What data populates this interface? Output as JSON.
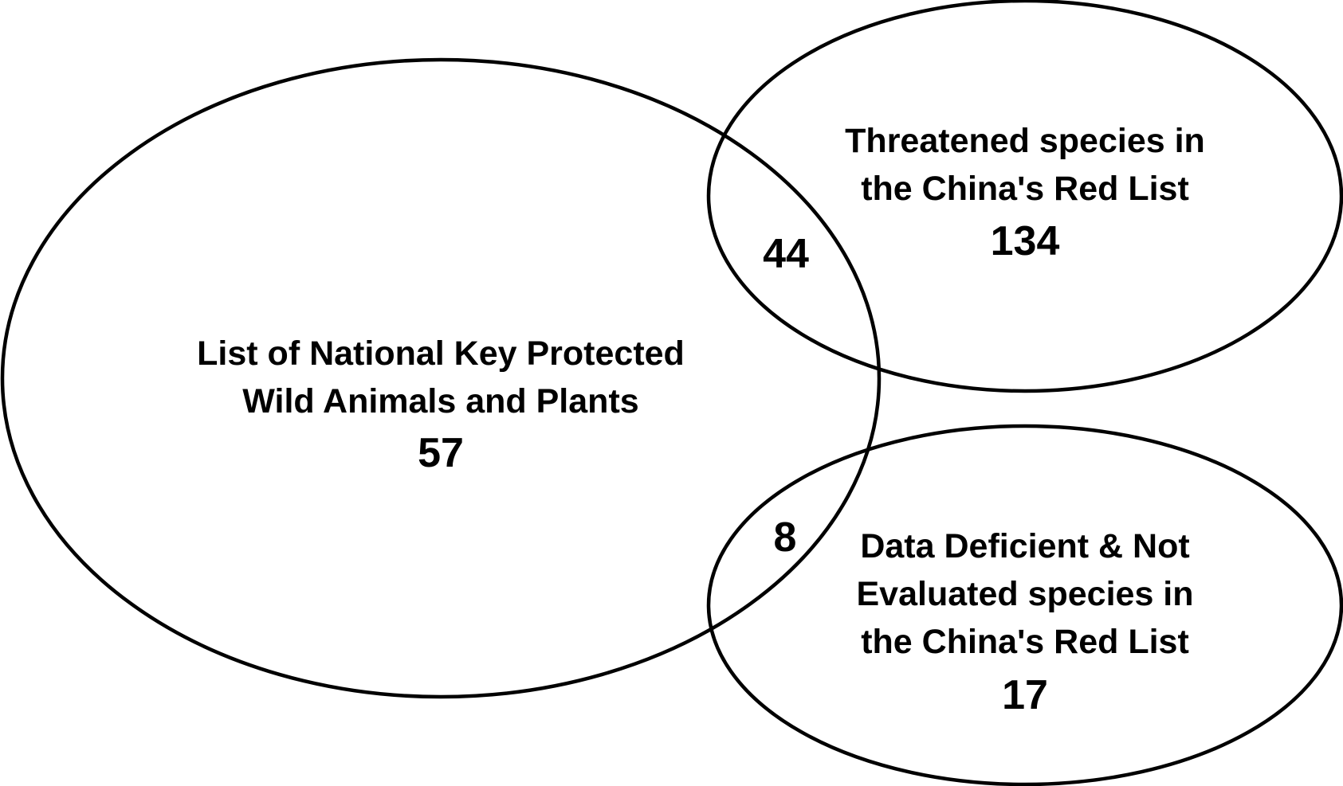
{
  "sets": {
    "national_list": {
      "label_lines": [
        "List of National Key Protected",
        "Wild Animals and Plants"
      ],
      "count": "57"
    },
    "threatened": {
      "label_lines": [
        "Threatened species in",
        "the China's Red List"
      ],
      "count": "134"
    },
    "data_deficient": {
      "label_lines": [
        "Data Deficient & Not",
        "Evaluated species in",
        "the China's Red List"
      ],
      "count": "17"
    }
  },
  "intersections": {
    "national_threatened": "44",
    "national_data_deficient": "8"
  },
  "colors": {
    "stroke": "#000000",
    "text": "#000000",
    "background": "#ffffff"
  }
}
